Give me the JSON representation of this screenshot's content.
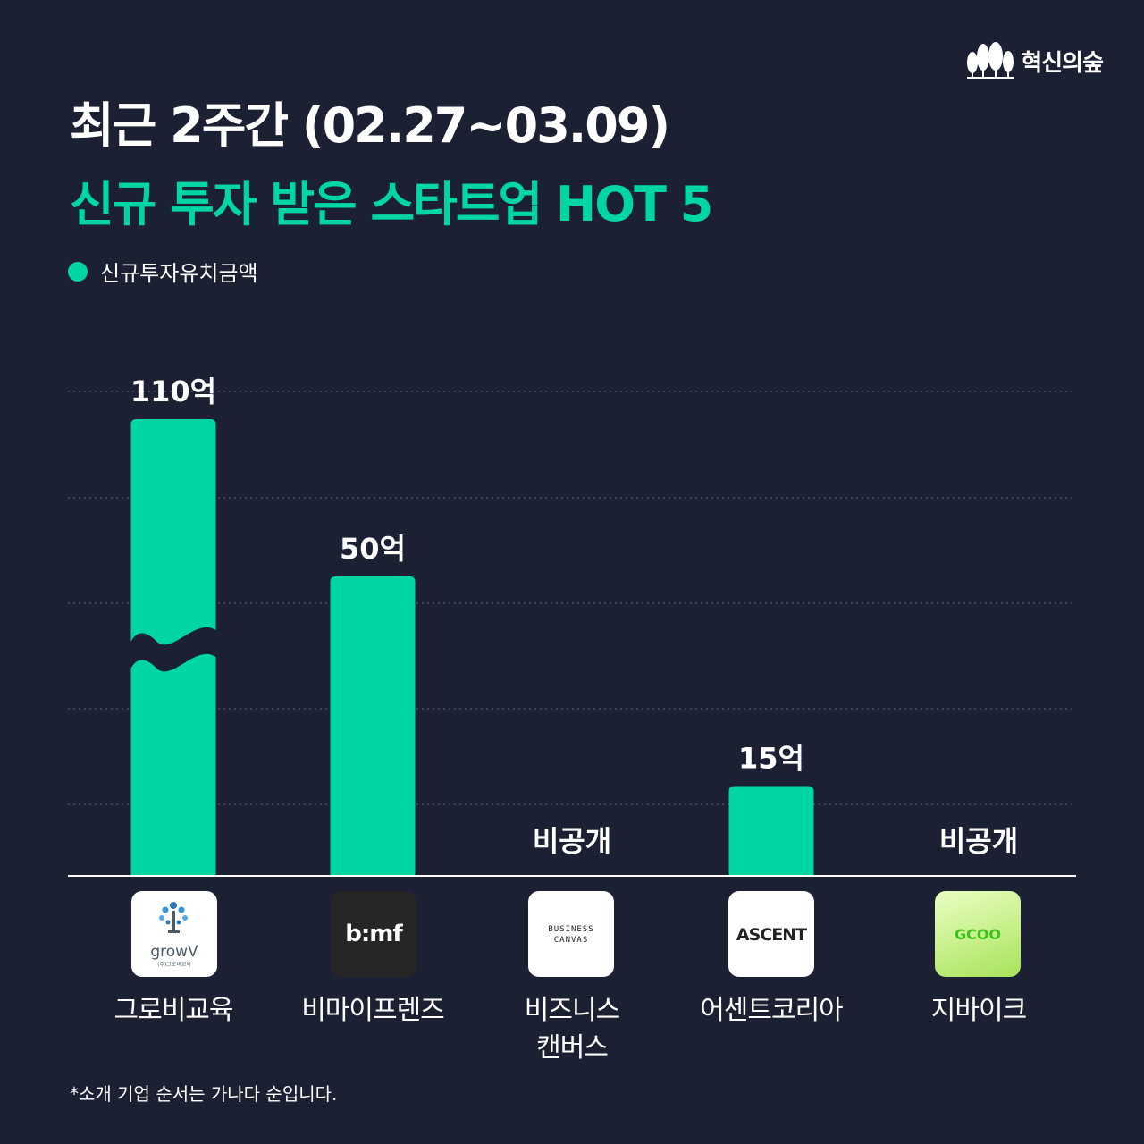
{
  "brand": {
    "name": "혁신의숲",
    "icon": "forest-trees-icon"
  },
  "header": {
    "title_line1": "최근 2주간 (02.27~03.09)",
    "title_line2": "신규 투자 받은 스타트업 HOT 5"
  },
  "colors": {
    "background": "#1c2033",
    "accent": "#00d6a1",
    "text": "#ffffff"
  },
  "chart_data": {
    "type": "bar",
    "legend": {
      "label": "신규투자유치금액",
      "position": "top-left"
    },
    "categories": [
      "그로비교육",
      "비마이프렌즈",
      "비즈니스 캔버스",
      "어센트코리아",
      "지바이크"
    ],
    "series": [
      {
        "name": "신규투자유치금액",
        "values": [
          110,
          50,
          null,
          15,
          null
        ]
      }
    ],
    "value_labels": [
      "110억",
      "50억",
      "비공개",
      "15억",
      "비공개"
    ],
    "units": "억",
    "axis_break": {
      "category": "그로비교육",
      "note": "broken bar (wavy cut)"
    },
    "grid": true,
    "y_axis_labels_shown": false
  },
  "companies": [
    {
      "name_line1": "그로비교육",
      "name_line2": "",
      "logo_text": "growV",
      "logo_subtext": "(주)그로비교육",
      "logo_icon": "tree-icon"
    },
    {
      "name_line1": "비마이프렌즈",
      "name_line2": "",
      "logo_text": "b:mf"
    },
    {
      "name_line1": "비즈니스",
      "name_line2": "캔버스",
      "logo_text_1": "BUSINESS",
      "logo_text_2": "CANVAS"
    },
    {
      "name_line1": "어센트코리아",
      "name_line2": "",
      "logo_text": "ASCENT"
    },
    {
      "name_line1": "지바이크",
      "name_line2": "",
      "logo_text": "GCOO"
    }
  ],
  "footnote": "*소개 기업 순서는 가나다 순입니다."
}
